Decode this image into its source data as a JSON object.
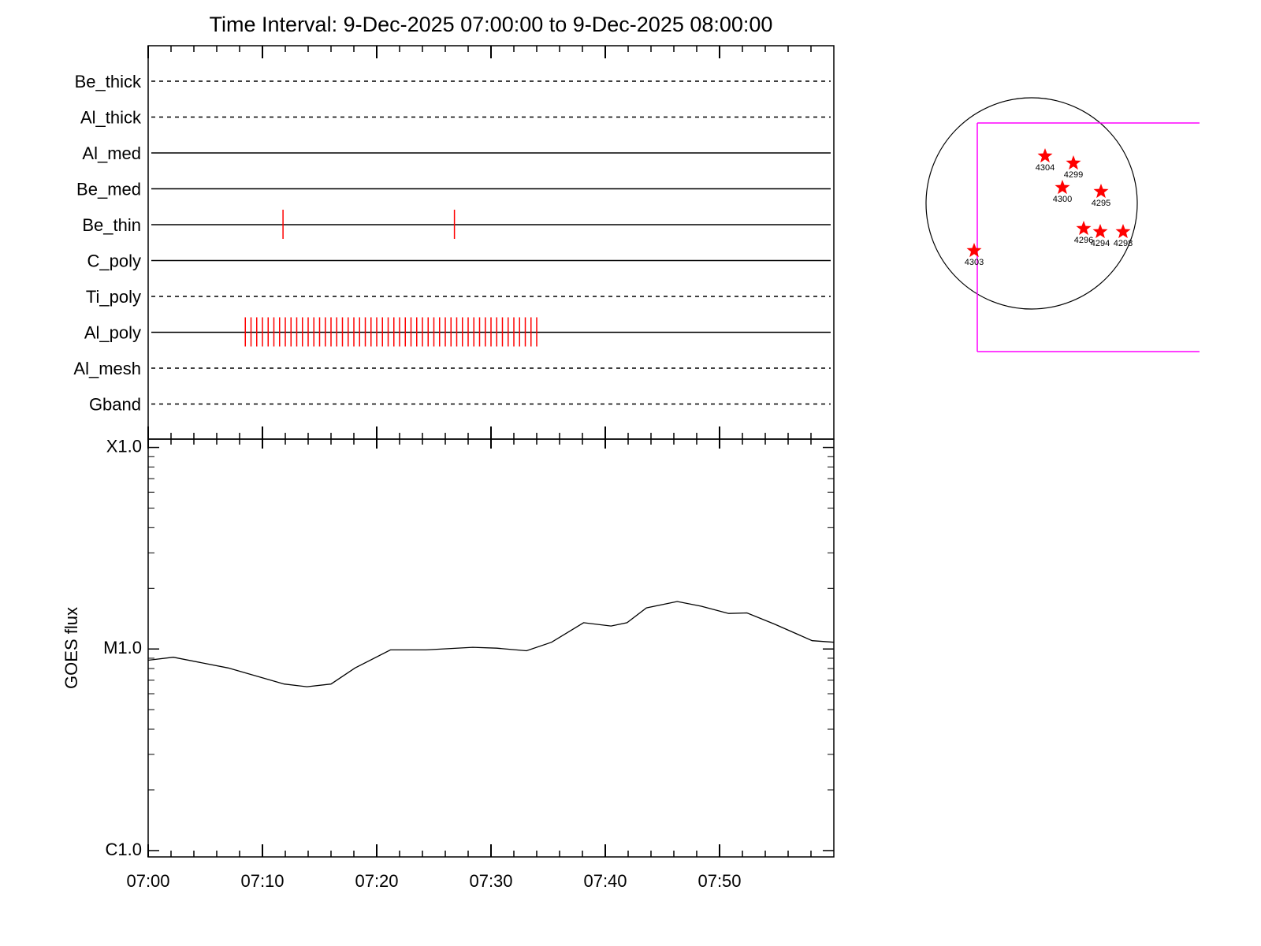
{
  "chart_data": [
    {
      "type": "event_strip",
      "title": "Time Interval:  9-Dec-2025 07:00:00 to  9-Dec-2025 08:00:00",
      "xlim": [
        0,
        60
      ],
      "xticks": [
        0,
        10,
        20,
        30,
        40,
        50
      ],
      "xminorticks": [
        2,
        4,
        6,
        8,
        12,
        14,
        16,
        18,
        22,
        24,
        26,
        28,
        32,
        34,
        36,
        38,
        42,
        44,
        46,
        48,
        52,
        54,
        56,
        58
      ],
      "event_color": "#ff0000",
      "rows": [
        {
          "name": "Be_thick",
          "style": "dashed",
          "events": []
        },
        {
          "name": "Al_thick",
          "style": "dashed",
          "events": []
        },
        {
          "name": "Al_med",
          "style": "solid",
          "events": []
        },
        {
          "name": "Be_med",
          "style": "solid",
          "events": []
        },
        {
          "name": "Be_thin",
          "style": "solid",
          "events": [
            11.8,
            26.8
          ]
        },
        {
          "name": "C_poly",
          "style": "solid",
          "events": []
        },
        {
          "name": "Ti_poly",
          "style": "dashed",
          "events": []
        },
        {
          "name": "Al_poly",
          "style": "solid",
          "events": [
            8.5,
            9,
            9.5,
            10,
            10.5,
            11,
            11.5,
            12,
            12.5,
            13,
            13.5,
            14,
            14.5,
            15,
            15.5,
            16,
            16.5,
            17,
            17.5,
            18,
            18.5,
            19,
            19.5,
            20,
            20.5,
            21,
            21.5,
            22,
            22.5,
            23,
            23.5,
            24,
            24.5,
            25,
            25.5,
            26,
            26.5,
            27,
            27.5,
            28,
            28.5,
            29,
            29.5,
            30,
            30.5,
            31,
            31.5,
            32,
            32.5,
            33,
            33.5,
            34
          ]
        },
        {
          "name": "Al_mesh",
          "style": "dashed",
          "events": []
        },
        {
          "name": "Gband",
          "style": "dashed",
          "events": []
        }
      ]
    },
    {
      "type": "line",
      "ylabel": "GOES flux",
      "color": "#000000",
      "x": [
        0,
        2.2,
        7.0,
        11.9,
        13.9,
        16.0,
        18.1,
        21.2,
        24.3,
        28.4,
        30.5,
        33.1,
        35.3,
        38.1,
        40.5,
        41.9,
        43.6,
        46.3,
        48.4,
        50.8,
        52.4,
        54.8,
        58.1,
        60
      ],
      "values": [
        8.8e-06,
        9.1e-06,
        8.05e-06,
        6.7e-06,
        6.5e-06,
        6.7e-06,
        8.05e-06,
        9.9e-06,
        9.9e-06,
        1.02e-05,
        1.01e-05,
        9.8e-06,
        1.08e-05,
        1.35e-05,
        1.3e-05,
        1.35e-05,
        1.6e-05,
        1.72e-05,
        1.63e-05,
        1.5e-05,
        1.51e-05,
        1.33e-05,
        1.1e-05,
        1.08e-05
      ],
      "xlim": [
        0,
        60
      ],
      "xticks": [
        {
          "value": 0,
          "label": "07:00"
        },
        {
          "value": 10,
          "label": "07:10"
        },
        {
          "value": 20,
          "label": "07:20"
        },
        {
          "value": 30,
          "label": "07:30"
        },
        {
          "value": 40,
          "label": "07:40"
        },
        {
          "value": 50,
          "label": "07:50"
        }
      ],
      "xminorticks": [
        2,
        4,
        6,
        8,
        12,
        14,
        16,
        18,
        22,
        24,
        26,
        28,
        32,
        34,
        36,
        38,
        42,
        44,
        46,
        48,
        52,
        54,
        56,
        58
      ],
      "log_scale": true,
      "ylim": [
        9.3e-07,
        0.00011
      ],
      "yticks": [
        {
          "value": 0.0001,
          "label": "X1.0"
        },
        {
          "value": 1e-05,
          "label": "M1.0"
        },
        {
          "value": 1e-06,
          "label": "C1.0"
        }
      ],
      "yminorticks": [
        2e-06,
        3e-06,
        4e-06,
        5e-06,
        6e-06,
        7e-06,
        8e-06,
        9e-06,
        2e-05,
        3e-05,
        4e-05,
        5e-05,
        6e-05,
        7e-05,
        8e-05,
        9e-05
      ]
    }
  ],
  "solar_disk": {
    "regions": [
      "4304",
      "4299",
      "4300",
      "4295",
      "4296",
      "4294",
      "4298",
      "4303"
    ],
    "box_color": "#ff00ff",
    "star_color": "#ff0000"
  }
}
